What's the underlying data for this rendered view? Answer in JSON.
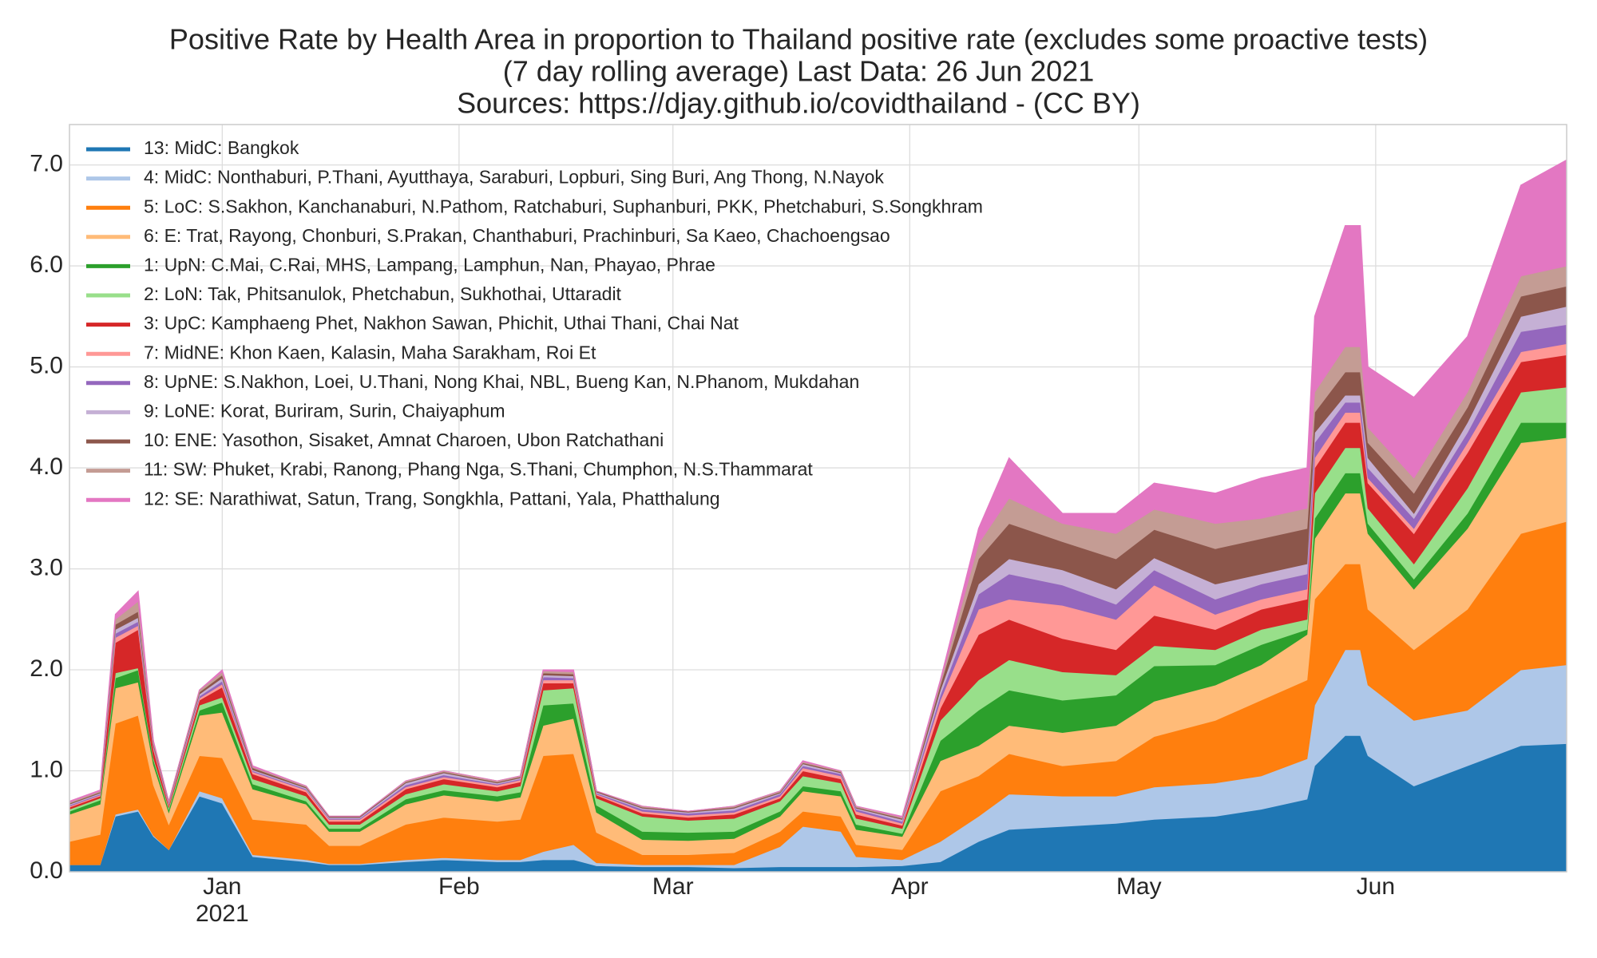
{
  "chart_data": {
    "type": "stacked_area",
    "title": [
      "Positive Rate by Health Area in proportion to Thailand positive rate (excludes some proactive tests)",
      "(7 day rolling average) Last Data: 26 Jun 2021",
      "Sources: https://djay.github.io/covidthailand - (CC BY)"
    ],
    "x": [
      "2020-12-12",
      "2020-12-16",
      "2020-12-18",
      "2020-12-21",
      "2020-12-23",
      "2020-12-25",
      "2020-12-29",
      "2021-01-01",
      "2021-01-05",
      "2021-01-12",
      "2021-01-15",
      "2021-01-19",
      "2021-01-25",
      "2021-01-30",
      "2021-02-06",
      "2021-02-09",
      "2021-02-12",
      "2021-02-16",
      "2021-02-19",
      "2021-02-25",
      "2021-03-03",
      "2021-03-09",
      "2021-03-15",
      "2021-03-18",
      "2021-03-23",
      "2021-03-25",
      "2021-03-31",
      "2021-04-05",
      "2021-04-10",
      "2021-04-14",
      "2021-04-21",
      "2021-04-28",
      "2021-05-03",
      "2021-05-11",
      "2021-05-17",
      "2021-05-23",
      "2021-05-24",
      "2021-05-28",
      "2021-05-30",
      "2021-05-31",
      "2021-06-06",
      "2021-06-13",
      "2021-06-20",
      "2021-06-26"
    ],
    "xlim": [
      "2020-12-12",
      "2021-06-26"
    ],
    "xticks": [
      {
        "value": "2021-01-01",
        "label": "Jan",
        "sublabel": "2021"
      },
      {
        "value": "2021-02-01",
        "label": "Feb"
      },
      {
        "value": "2021-03-01",
        "label": "Mar"
      },
      {
        "value": "2021-04-01",
        "label": "Apr"
      },
      {
        "value": "2021-05-01",
        "label": "May"
      },
      {
        "value": "2021-06-01",
        "label": "Jun"
      }
    ],
    "ylim": [
      0,
      7.4
    ],
    "yticks": [
      {
        "value": 0,
        "label": "0.0"
      },
      {
        "value": 1,
        "label": "1.0"
      },
      {
        "value": 2,
        "label": "2.0"
      },
      {
        "value": 3,
        "label": "3.0"
      },
      {
        "value": 4,
        "label": "4.0"
      },
      {
        "value": 5,
        "label": "5.0"
      },
      {
        "value": 6,
        "label": "6.0"
      },
      {
        "value": 7,
        "label": "7.0"
      }
    ],
    "grid": true,
    "legend": "upper left",
    "series": [
      {
        "name": "13: MidC: Bangkok",
        "color": "#1f77b4",
        "values": [
          0.07,
          0.07,
          0.55,
          0.6,
          0.35,
          0.22,
          0.75,
          0.68,
          0.15,
          0.1,
          0.07,
          0.07,
          0.1,
          0.12,
          0.1,
          0.1,
          0.12,
          0.12,
          0.06,
          0.05,
          0.05,
          0.04,
          0.05,
          0.05,
          0.05,
          0.05,
          0.06,
          0.1,
          0.3,
          0.42,
          0.45,
          0.48,
          0.52,
          0.55,
          0.62,
          0.72,
          1.05,
          1.35,
          1.35,
          1.15,
          0.85,
          1.05,
          1.25,
          1.27
        ]
      },
      {
        "name": "4: MidC: Nonthaburi, P.Thani, Ayutthaya, Saraburi, Lopburi, Sing Buri, Ang Thong, N.Nayok",
        "color": "#aec7e8",
        "values": [
          0,
          0,
          0.02,
          0.02,
          0.01,
          0,
          0.05,
          0.05,
          0.02,
          0.02,
          0.01,
          0.01,
          0.02,
          0.02,
          0.02,
          0.02,
          0.08,
          0.15,
          0.03,
          0.02,
          0.02,
          0.03,
          0.2,
          0.4,
          0.35,
          0.1,
          0.06,
          0.2,
          0.25,
          0.35,
          0.3,
          0.27,
          0.32,
          0.33,
          0.33,
          0.4,
          0.6,
          0.85,
          0.85,
          0.7,
          0.65,
          0.55,
          0.75,
          0.78
        ]
      },
      {
        "name": "5: LoC: S.Sakhon, Kanchanaburi, N.Pathom, Ratchaburi, Suphanburi, PKK, Phetchaburi, S.Songkhram",
        "color": "#ff7f0e",
        "values": [
          0.23,
          0.3,
          0.9,
          0.93,
          0.5,
          0.25,
          0.35,
          0.4,
          0.35,
          0.35,
          0.18,
          0.18,
          0.35,
          0.4,
          0.38,
          0.4,
          0.95,
          0.9,
          0.3,
          0.1,
          0.1,
          0.12,
          0.15,
          0.15,
          0.15,
          0.12,
          0.1,
          0.5,
          0.4,
          0.4,
          0.3,
          0.35,
          0.5,
          0.62,
          0.75,
          0.78,
          1.05,
          0.85,
          0.85,
          0.75,
          0.7,
          1.0,
          1.35,
          1.42
        ]
      },
      {
        "name": "6: E: Trat, Rayong, Chonburi, S.Prakan, Chanthaburi, Prachinburi, Sa Kaeo, Chachoengsao",
        "color": "#ffbb78",
        "values": [
          0.27,
          0.3,
          0.35,
          0.33,
          0.2,
          0.12,
          0.4,
          0.45,
          0.3,
          0.2,
          0.14,
          0.14,
          0.2,
          0.22,
          0.2,
          0.22,
          0.3,
          0.35,
          0.2,
          0.15,
          0.14,
          0.14,
          0.15,
          0.2,
          0.2,
          0.15,
          0.13,
          0.3,
          0.3,
          0.28,
          0.33,
          0.35,
          0.35,
          0.35,
          0.35,
          0.45,
          0.6,
          0.7,
          0.7,
          0.75,
          0.6,
          0.8,
          0.9,
          0.83
        ]
      },
      {
        "name": "1: UpN: C.Mai, C.Rai, MHS, Lampang, Lamphun, Nan, Phayao, Phrae",
        "color": "#2ca02c",
        "values": [
          0.03,
          0.04,
          0.1,
          0.12,
          0.05,
          0.03,
          0.05,
          0.1,
          0.05,
          0.03,
          0.03,
          0.03,
          0.05,
          0.05,
          0.05,
          0.05,
          0.2,
          0.15,
          0.07,
          0.08,
          0.08,
          0.07,
          0.05,
          0.05,
          0.05,
          0.05,
          0.03,
          0.2,
          0.35,
          0.35,
          0.32,
          0.3,
          0.35,
          0.2,
          0.2,
          0.05,
          0.2,
          0.2,
          0.2,
          0.1,
          0.1,
          0.15,
          0.2,
          0.15
        ]
      },
      {
        "name": "2: LoN: Tak, Phitsanulok, Phetchabun, Sukhothai, Uttaradit",
        "color": "#98df8a",
        "values": [
          0.02,
          0.02,
          0.05,
          0.02,
          0.02,
          0.02,
          0.05,
          0.05,
          0.05,
          0.05,
          0.04,
          0.04,
          0.05,
          0.06,
          0.05,
          0.06,
          0.15,
          0.15,
          0.07,
          0.15,
          0.12,
          0.13,
          0.1,
          0.1,
          0.08,
          0.06,
          0.05,
          0.2,
          0.3,
          0.3,
          0.28,
          0.2,
          0.2,
          0.15,
          0.15,
          0.1,
          0.25,
          0.25,
          0.25,
          0.15,
          0.15,
          0.25,
          0.3,
          0.35
        ]
      },
      {
        "name": "3: UpC: Kamphaeng Phet, Nakhon Sawan, Phichit, Uthai Thani, Chai Nat",
        "color": "#d62728",
        "values": [
          0.02,
          0.02,
          0.3,
          0.38,
          0.08,
          0.02,
          0.05,
          0.1,
          0.05,
          0.04,
          0.03,
          0.03,
          0.05,
          0.05,
          0.04,
          0.04,
          0.07,
          0.05,
          0.03,
          0.03,
          0.03,
          0.04,
          0.03,
          0.05,
          0.04,
          0.04,
          0.03,
          0.12,
          0.45,
          0.4,
          0.33,
          0.25,
          0.3,
          0.2,
          0.2,
          0.2,
          0.25,
          0.25,
          0.25,
          0.25,
          0.3,
          0.35,
          0.3,
          0.32
        ]
      },
      {
        "name": "7: MidNE: Khon Kaen, Kalasin, Maha Sarakham, Roi Et",
        "color": "#ff9896",
        "values": [
          0.01,
          0.01,
          0.05,
          0.04,
          0.02,
          0.01,
          0.02,
          0.03,
          0.02,
          0.02,
          0.02,
          0.02,
          0.02,
          0.02,
          0.02,
          0.02,
          0.03,
          0.03,
          0.01,
          0.02,
          0.02,
          0.02,
          0.02,
          0.03,
          0.03,
          0.03,
          0.02,
          0.08,
          0.25,
          0.2,
          0.33,
          0.3,
          0.3,
          0.15,
          0.1,
          0.1,
          0.1,
          0.1,
          0.1,
          0.05,
          0.05,
          0.1,
          0.1,
          0.11
        ]
      },
      {
        "name": "8: UpNE: S.Nakhon, Loei, U.Thani, Nong Khai, NBL, Bueng Kan, N.Phanom, Mukdahan",
        "color": "#9467bd",
        "values": [
          0.01,
          0.01,
          0.04,
          0.04,
          0.01,
          0.01,
          0.02,
          0.03,
          0.01,
          0.01,
          0.01,
          0.01,
          0.02,
          0.02,
          0.01,
          0.01,
          0.03,
          0.02,
          0.01,
          0.02,
          0.02,
          0.02,
          0.02,
          0.02,
          0.02,
          0.02,
          0.02,
          0.05,
          0.15,
          0.25,
          0.2,
          0.15,
          0.15,
          0.15,
          0.15,
          0.15,
          0.15,
          0.1,
          0.1,
          0.1,
          0.1,
          0.1,
          0.2,
          0.19
        ]
      },
      {
        "name": "9: LoNE: Korat, Buriram, Surin, Chaiyaphum",
        "color": "#c5b0d5",
        "values": [
          0.01,
          0.01,
          0.04,
          0.04,
          0.01,
          0.01,
          0.02,
          0.03,
          0.01,
          0.01,
          0.01,
          0.01,
          0.02,
          0.02,
          0.01,
          0.01,
          0.02,
          0.02,
          0.01,
          0.01,
          0.01,
          0.02,
          0.01,
          0.02,
          0.01,
          0.01,
          0.02,
          0.05,
          0.1,
          0.15,
          0.15,
          0.15,
          0.12,
          0.15,
          0.1,
          0.1,
          0.1,
          0.07,
          0.07,
          0.1,
          0.05,
          0.1,
          0.15,
          0.18
        ]
      },
      {
        "name": "10: ENE: Yasothon, Sisaket, Amnat Charoen, Ubon Ratchathani",
        "color": "#8c564b",
        "values": [
          0.01,
          0.01,
          0.05,
          0.06,
          0.02,
          0.01,
          0.02,
          0.03,
          0.02,
          0.01,
          0.01,
          0.01,
          0.01,
          0.01,
          0.01,
          0.01,
          0.02,
          0.02,
          0.01,
          0.01,
          0.01,
          0.01,
          0.01,
          0.01,
          0.01,
          0.01,
          0.01,
          0.05,
          0.25,
          0.35,
          0.28,
          0.3,
          0.28,
          0.35,
          0.35,
          0.35,
          0.2,
          0.23,
          0.23,
          0.15,
          0.2,
          0.15,
          0.2,
          0.2
        ]
      },
      {
        "name": "11: SW: Phuket, Krabi, Ranong, Phang Nga, S.Thani, Chumphon, N.S.Thammarat",
        "color": "#c49c94",
        "values": [
          0.01,
          0.01,
          0.05,
          0.1,
          0.02,
          0,
          0.02,
          0.03,
          0.01,
          0.01,
          0,
          0,
          0.01,
          0.01,
          0.01,
          0.01,
          0.02,
          0.02,
          0,
          0.01,
          0,
          0.01,
          0.01,
          0.01,
          0.01,
          0.01,
          0.01,
          0.03,
          0.15,
          0.25,
          0.18,
          0.25,
          0.2,
          0.25,
          0.2,
          0.2,
          0.2,
          0.25,
          0.25,
          0.15,
          0.15,
          0.15,
          0.2,
          0.2
        ]
      },
      {
        "name": "12: SE: Narathiwat, Satun, Trang, Songkhla, Pattani, Yala, Phatthalung",
        "color": "#e377c2",
        "values": [
          0.01,
          0.01,
          0.05,
          0.1,
          0.01,
          0,
          0,
          0.02,
          0.01,
          0,
          0,
          0,
          0,
          0,
          0,
          0,
          0.01,
          0.02,
          0,
          0,
          0,
          0,
          0,
          0.01,
          0,
          0,
          0.01,
          0.02,
          0.15,
          0.4,
          0.1,
          0.2,
          0.26,
          0.3,
          0.4,
          0.4,
          0.75,
          1.2,
          1.2,
          0.6,
          0.8,
          0.55,
          0.9,
          1.05
        ]
      }
    ]
  }
}
